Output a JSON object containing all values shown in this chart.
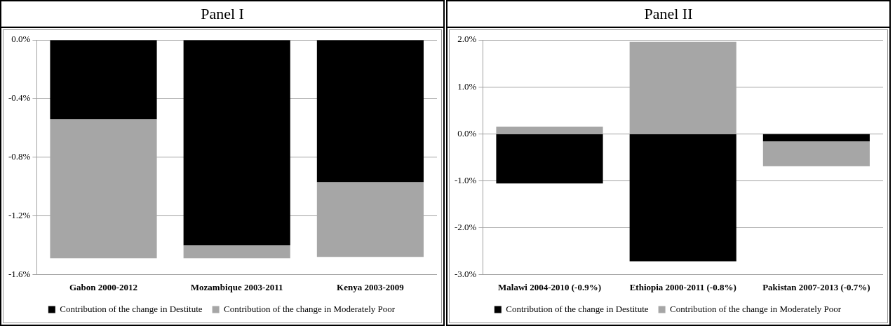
{
  "chart_data": [
    {
      "type": "bar",
      "title": "Panel I",
      "stacked": true,
      "grid": "y",
      "legend": "bottom",
      "categories": [
        "Gabon 2000-2012",
        "Mozambique 2003-2011",
        "Kenya 2003-2009"
      ],
      "series": [
        {
          "name": "Contribution of the change in Destitute",
          "color": "#000000",
          "values": [
            -0.54,
            -1.4,
            -0.97
          ]
        },
        {
          "name": "Contribution of the change in Moderately Poor",
          "color": "#a6a6a6",
          "values": [
            -0.95,
            -0.09,
            -0.51
          ]
        }
      ],
      "ylim": [
        -1.6,
        0
      ],
      "yticks": [
        {
          "value": 0,
          "label": "0.0%"
        },
        {
          "value": -0.4,
          "label": "-0.4%"
        },
        {
          "value": -0.8,
          "label": "-0.8%"
        },
        {
          "value": -1.2,
          "label": "-1.2%"
        },
        {
          "value": -1.6,
          "label": "-1.6%"
        }
      ]
    },
    {
      "type": "bar",
      "title": "Panel II",
      "stacked": true,
      "grid": "y",
      "legend": "bottom",
      "categories": [
        "Malawi 2004-2010 (-0.9%)",
        "Ethiopia 2000-2011 (-0.8%)",
        "Pakistan 2007-2013 (-0.7%)"
      ],
      "series": [
        {
          "name": "Contribution of the change in Destitute",
          "color": "#000000",
          "values": [
            -1.06,
            -2.72,
            -0.16
          ]
        },
        {
          "name": "Contribution of the change in Moderately Poor",
          "color": "#a6a6a6",
          "values": [
            0.15,
            1.96,
            -0.53
          ]
        }
      ],
      "ylim": [
        -3,
        2
      ],
      "yticks": [
        {
          "value": 2,
          "label": "2.0%"
        },
        {
          "value": 1,
          "label": "1.0%"
        },
        {
          "value": 0,
          "label": "0.0%"
        },
        {
          "value": -1,
          "label": "-1.0%"
        },
        {
          "value": -2,
          "label": "-2.0%"
        },
        {
          "value": -3,
          "label": "-3.0%"
        }
      ]
    }
  ]
}
